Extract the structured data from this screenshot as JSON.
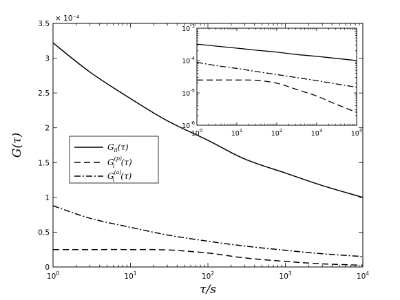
{
  "chart_data": [
    {
      "id": "main",
      "type": "line",
      "xlabel": "τ/s",
      "ylabel": "G(τ)",
      "xscale": "log",
      "xlim": [
        1,
        10000
      ],
      "ylim": [
        0,
        3.5
      ],
      "y_multiplier_label": "× 10⁻⁴",
      "x_ticks": [
        {
          "value": 1,
          "base": "10",
          "exp": "0"
        },
        {
          "value": 10,
          "base": "10",
          "exp": "1"
        },
        {
          "value": 100,
          "base": "10",
          "exp": "2"
        },
        {
          "value": 1000,
          "base": "10",
          "exp": "3"
        },
        {
          "value": 10000,
          "base": "10",
          "exp": "4"
        }
      ],
      "y_ticks": [
        {
          "value": 0,
          "label": "0"
        },
        {
          "value": 0.5,
          "label": "0.5"
        },
        {
          "value": 1,
          "label": "1"
        },
        {
          "value": 1.5,
          "label": "1.5"
        },
        {
          "value": 2,
          "label": "2"
        },
        {
          "value": 2.5,
          "label": "2.5"
        },
        {
          "value": 3,
          "label": "3"
        },
        {
          "value": 3.5,
          "label": "3.5"
        }
      ],
      "x": [
        1,
        3,
        10,
        30,
        100,
        300,
        1000,
        3000,
        10000
      ],
      "series": [
        {
          "id": "gii",
          "dash": "solid",
          "values": [
            3.22,
            2.8,
            2.42,
            2.1,
            1.82,
            1.55,
            1.35,
            1.17,
            1.0
          ]
        },
        {
          "id": "gp",
          "dash": "dashed",
          "values": [
            0.25,
            0.25,
            0.25,
            0.245,
            0.2,
            0.13,
            0.08,
            0.045,
            0.025
          ]
        },
        {
          "id": "ga",
          "dash": "dashdot",
          "values": [
            0.88,
            0.7,
            0.57,
            0.46,
            0.37,
            0.3,
            0.24,
            0.19,
            0.15
          ]
        }
      ],
      "legend": {
        "placement": "left",
        "entries": [
          {
            "series": "gii",
            "base": "G",
            "sub": "ii",
            "sup": "",
            "arg": "(τ)"
          },
          {
            "series": "gp",
            "base": "G",
            "sub": "i",
            "sup": "(p)",
            "arg": "(τ)"
          },
          {
            "series": "ga",
            "base": "G",
            "sub": "i",
            "sup": "(a)",
            "arg": "(τ)"
          }
        ]
      }
    },
    {
      "id": "inset",
      "type": "line",
      "placement": "top-right",
      "xscale": "log",
      "yscale": "log",
      "xlim": [
        1,
        10000
      ],
      "ylim": [
        1e-06,
        0.001
      ],
      "x_ticks": [
        {
          "value": 1,
          "base": "10",
          "exp": "0"
        },
        {
          "value": 10,
          "base": "10",
          "exp": "1"
        },
        {
          "value": 100,
          "base": "10",
          "exp": "2"
        },
        {
          "value": 1000,
          "base": "10",
          "exp": "3"
        },
        {
          "value": 10000,
          "base": "10",
          "exp": "4"
        }
      ],
      "y_ticks": [
        {
          "value": 1e-06,
          "base": "10",
          "exp": "-6"
        },
        {
          "value": 1e-05,
          "base": "10",
          "exp": "-5"
        },
        {
          "value": 0.0001,
          "base": "10",
          "exp": "-4"
        },
        {
          "value": 0.001,
          "base": "10",
          "exp": "-3"
        }
      ],
      "x": [
        1,
        3,
        10,
        30,
        100,
        300,
        1000,
        3000,
        10000
      ],
      "series": [
        {
          "id": "gii",
          "dash": "solid",
          "values": [
            0.000322,
            0.00028,
            0.000242,
            0.00021,
            0.000182,
            0.000155,
            0.000135,
            0.000117,
            0.0001
          ]
        },
        {
          "id": "gp",
          "dash": "dashed",
          "values": [
            2.5e-05,
            2.5e-05,
            2.5e-05,
            2.45e-05,
            2e-05,
            1.3e-05,
            8e-06,
            4.5e-06,
            2.5e-06
          ]
        },
        {
          "id": "ga",
          "dash": "dashdot",
          "values": [
            8.8e-05,
            7e-05,
            5.7e-05,
            4.6e-05,
            3.7e-05,
            3e-05,
            2.4e-05,
            1.9e-05,
            1.5e-05
          ]
        }
      ]
    }
  ]
}
